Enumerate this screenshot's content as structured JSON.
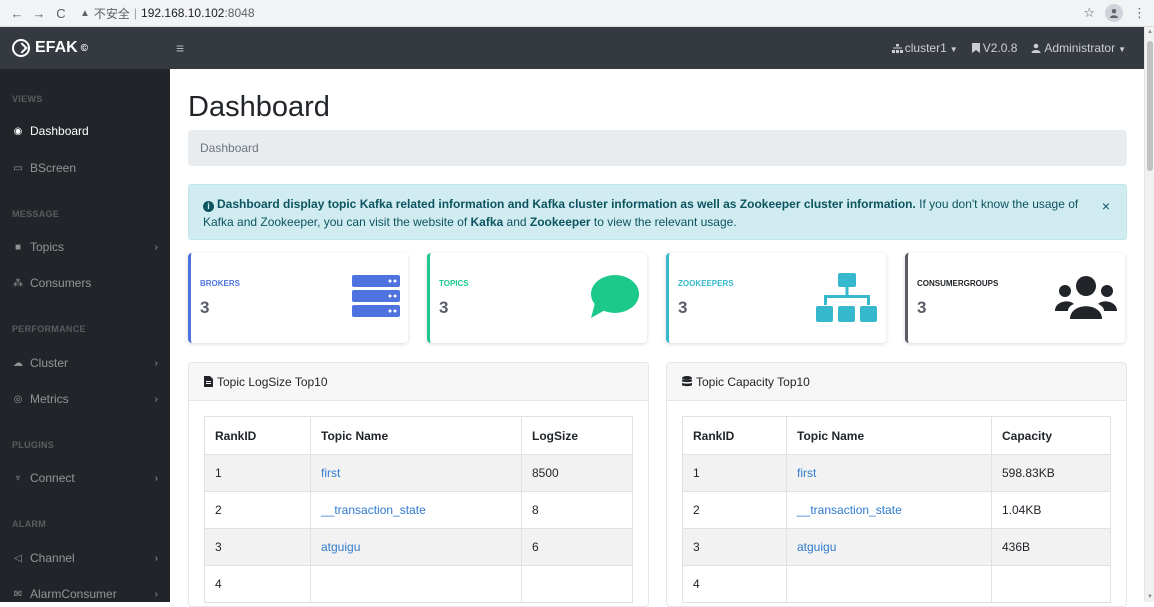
{
  "browser": {
    "back": "←",
    "forward": "→",
    "reload": "C",
    "warning": "▲",
    "insecure": "不安全",
    "separator": "|",
    "host": "192.168.10.102",
    "port": ":8048",
    "bookmark_star": "☆",
    "more": "⋮"
  },
  "topbar": {
    "brand": "EFAK",
    "brand_mark": "©",
    "hamburger": "≡",
    "cluster": "cluster1",
    "version": "V2.0.8",
    "user": "Administrator"
  },
  "sidebar": {
    "headings": [
      "VIEWS",
      "MESSAGE",
      "PERFORMANCE",
      "PLUGINS",
      "ALARM"
    ],
    "items": [
      {
        "label": "Dashboard",
        "icon": "dashboard-icon",
        "glyph": "◉"
      },
      {
        "label": "BScreen",
        "icon": "monitor-icon",
        "glyph": "▭"
      },
      {
        "label": "Topics",
        "icon": "message-icon",
        "glyph": "■"
      },
      {
        "label": "Consumers",
        "icon": "users-icon",
        "glyph": "⁂"
      },
      {
        "label": "Cluster",
        "icon": "cloud-icon",
        "glyph": "☁"
      },
      {
        "label": "Metrics",
        "icon": "eye-icon",
        "glyph": "◎"
      },
      {
        "label": "Connect",
        "icon": "plug-icon",
        "glyph": "♆"
      },
      {
        "label": "Channel",
        "icon": "bullhorn-icon",
        "glyph": "◁"
      },
      {
        "label": "AlarmConsumer",
        "icon": "envelope-icon",
        "glyph": "✉"
      }
    ]
  },
  "page": {
    "title": "Dashboard",
    "breadcrumb": "Dashboard"
  },
  "alert": {
    "bold_text": "Dashboard display topic Kafka related information and Kafka cluster information as well as Zookeeper cluster information.",
    "text1": " If you don't know the usage of Kafka and Zookeeper, you can visit the website of ",
    "kafka": "Kafka",
    "and": " and ",
    "zookeeper": "Zookeeper",
    "text2": " to view the relevant usage.",
    "close": "×"
  },
  "cards": [
    {
      "label": "BROKERS",
      "value": "3",
      "color": "#4e73df",
      "icon": "server-icon"
    },
    {
      "label": "TOPICS",
      "value": "3",
      "color": "#1cc88a",
      "icon": "comment-icon"
    },
    {
      "label": "ZOOKEEPERS",
      "value": "3",
      "color": "#36b9cc",
      "icon": "sitemap-icon"
    },
    {
      "label": "CONSUMERGROUPS",
      "value": "3",
      "color": "#5a5c69",
      "icon": "users-group-icon"
    }
  ],
  "logsize_panel": {
    "title": "Topic LogSize Top10",
    "columns": [
      "RankID",
      "Topic Name",
      "LogSize"
    ],
    "rows": [
      [
        "1",
        "first",
        "8500"
      ],
      [
        "2",
        "__transaction_state",
        "8"
      ],
      [
        "3",
        "atguigu",
        "6"
      ],
      [
        "4",
        "",
        ""
      ]
    ]
  },
  "capacity_panel": {
    "title": "Topic Capacity Top10",
    "columns": [
      "RankID",
      "Topic Name",
      "Capacity"
    ],
    "rows": [
      [
        "1",
        "first",
        "598.83KB"
      ],
      [
        "2",
        "__transaction_state",
        "1.04KB"
      ],
      [
        "3",
        "atguigu",
        "436B"
      ],
      [
        "4",
        "",
        ""
      ]
    ]
  }
}
